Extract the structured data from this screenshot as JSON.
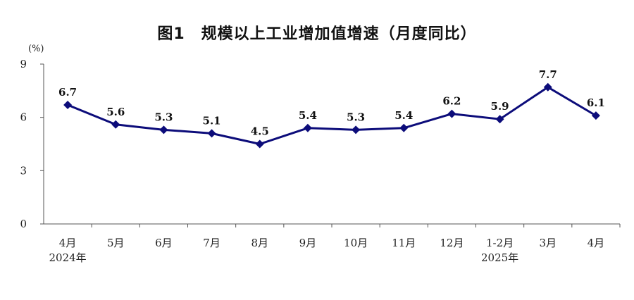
{
  "chart_data": {
    "type": "line",
    "title": "图1　规模以上工业增加值增速（月度同比）",
    "ylabel": "(%)",
    "ylim": [
      0,
      9
    ],
    "yticks": [
      0,
      3,
      6,
      9
    ],
    "categories": [
      "4月",
      "5月",
      "6月",
      "7月",
      "8月",
      "9月",
      "10月",
      "11月",
      "12月",
      "1-2月",
      "3月",
      "4月"
    ],
    "year_labels": [
      {
        "category_index": 0,
        "text": "2024年"
      },
      {
        "category_index": 9,
        "text": "2025年"
      }
    ],
    "series": [
      {
        "values": [
          6.7,
          5.6,
          5.3,
          5.1,
          4.5,
          5.4,
          5.3,
          5.4,
          6.2,
          5.9,
          7.7,
          6.1
        ],
        "color": "#0c0c7a"
      }
    ],
    "grid": false,
    "legend": "none"
  }
}
